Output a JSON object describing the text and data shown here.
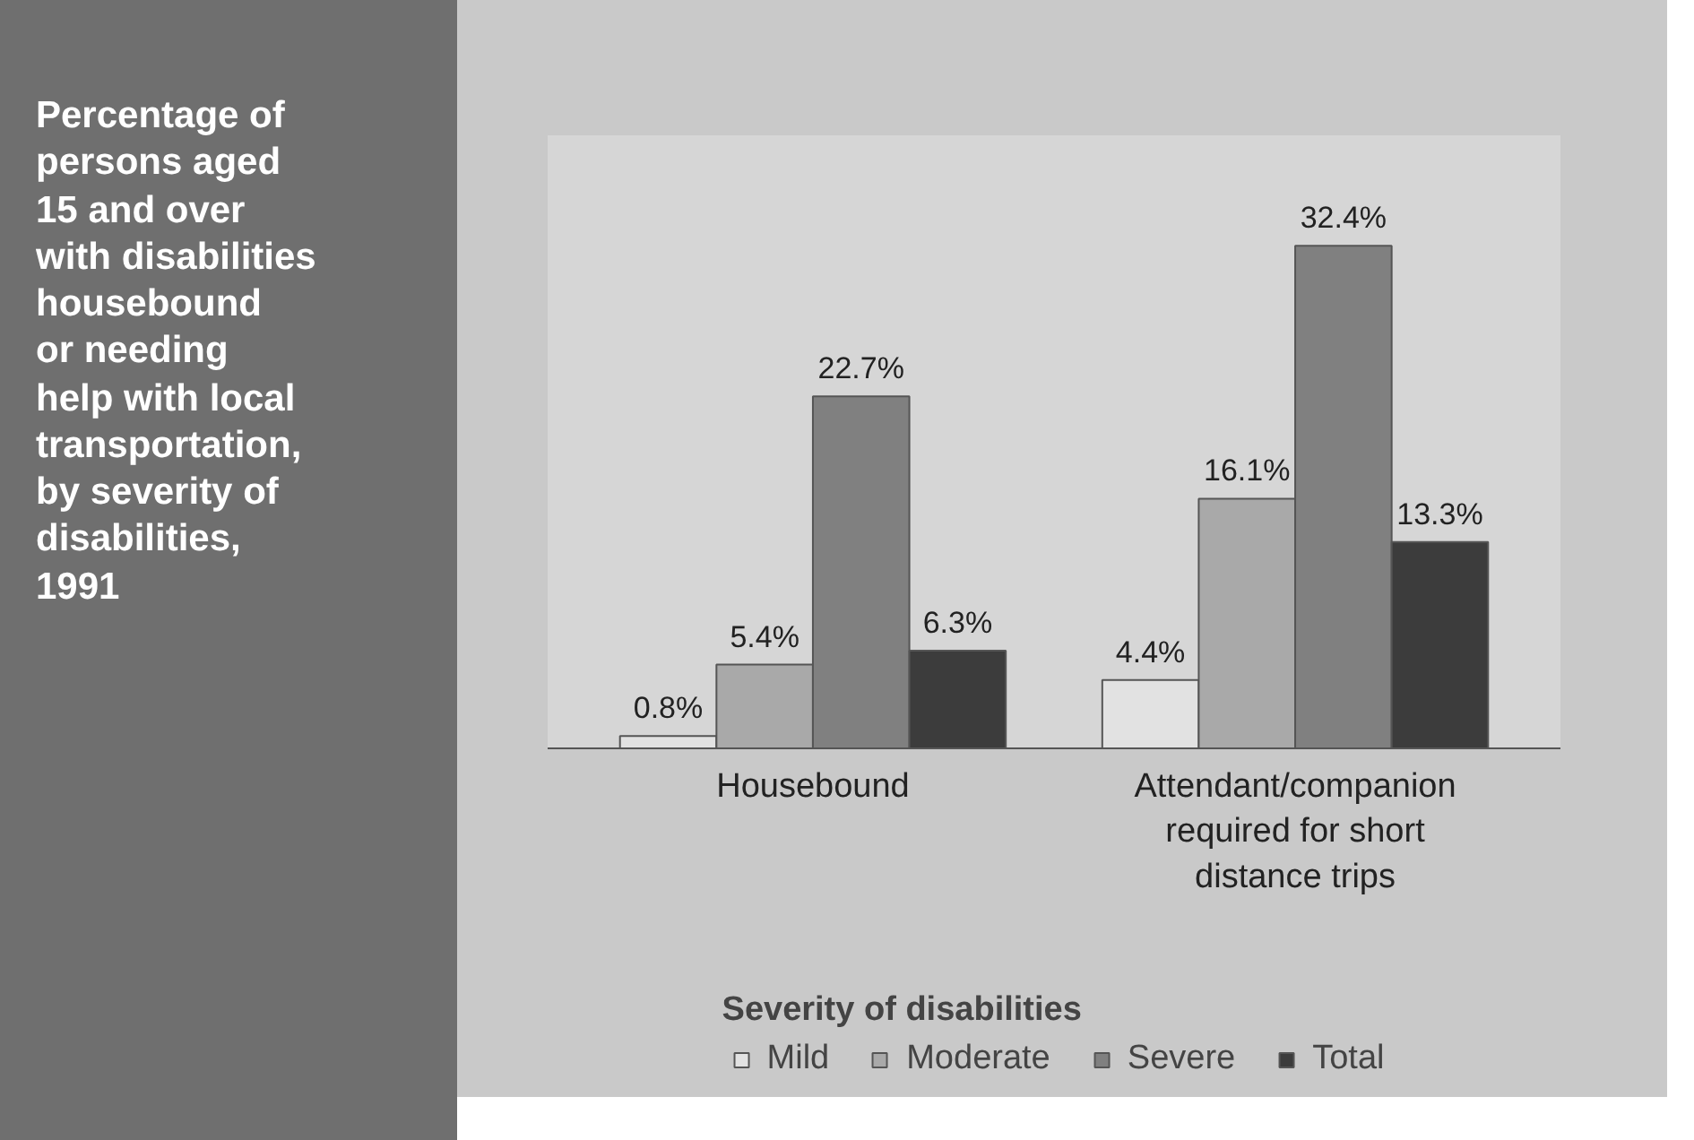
{
  "chart_data": {
    "type": "bar",
    "title": "Percentage of\npersons aged\n15 and over\nwith disabilities\nhousebound\nor needing\nhelp with local\ntransportation,\nby severity of\ndisabilities,\n1991",
    "categories": [
      "Housebound",
      "Attendant/companion required for short distance trips"
    ],
    "legend_title": "Severity of disabilities",
    "legend": "bottom",
    "series": [
      {
        "name": "Mild",
        "color": "#e2e2e2",
        "values": [
          0.8,
          4.4
        ],
        "value_labels": [
          "0.8%",
          "4.4%"
        ]
      },
      {
        "name": "Moderate",
        "color": "#a9a9a9",
        "values": [
          5.4,
          16.1
        ],
        "value_labels": [
          "5.4%",
          "16.1%"
        ]
      },
      {
        "name": "Severe",
        "color": "#808080",
        "values": [
          22.7,
          32.4
        ],
        "value_labels": [
          "22.7%",
          "32.4%"
        ]
      },
      {
        "name": "Total",
        "color": "#3c3c3c",
        "values": [
          6.3,
          13.3
        ],
        "value_labels": [
          "6.3%",
          "13.3%"
        ]
      }
    ],
    "tick_labels": "x"
  }
}
